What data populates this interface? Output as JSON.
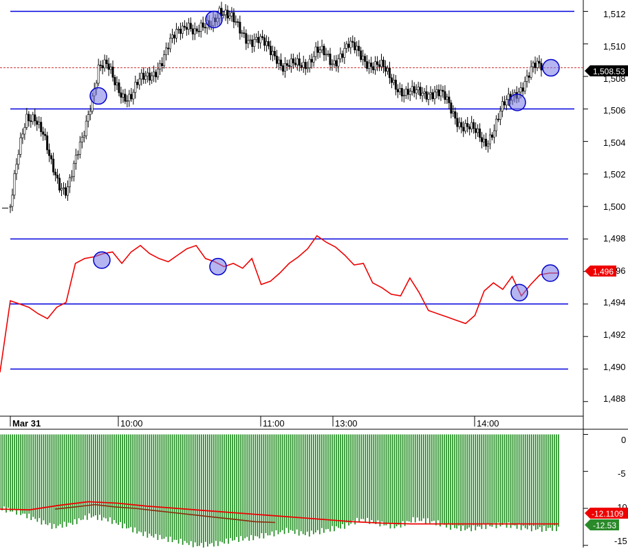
{
  "chart_data": [
    {
      "type": "candlestick",
      "panel": "price",
      "y_axis_ticks": [
        "1,512",
        "1,510",
        "1,508",
        "1,506",
        "1,504",
        "1,502",
        "1,500",
        "1,498",
        "1,496",
        "1,494",
        "1,492",
        "1,490",
        "1,488"
      ],
      "y_axis_values": [
        1512,
        1510,
        1508,
        1506,
        1504,
        1502,
        1500,
        1498,
        1496,
        1494,
        1492,
        1490,
        1488
      ],
      "ylim": [
        1487.1,
        1512.7
      ],
      "last_price": 1508.53,
      "last_price_label": "1,508.53",
      "support_resistance_levels": [
        1512,
        1506
      ],
      "x_axis_labels": [
        "Mar 31",
        "10:00",
        "11:00",
        "13:00",
        "14:00"
      ],
      "close_series": [
        1500,
        1503,
        1505.5,
        1505.8,
        1504.5,
        1502.5,
        1501.5,
        1501.2,
        1502.5,
        1504,
        1506.5,
        1508.8,
        1508.5,
        1507.5,
        1507,
        1506.8,
        1507.5,
        1508,
        1508.5,
        1509,
        1510,
        1511,
        1511.5,
        1510.5,
        1510.8,
        1511.5,
        1512.2,
        1511.5,
        1511.2,
        1510.8,
        1510.2,
        1510,
        1509.8,
        1509.5,
        1508.5,
        1508.5,
        1508.8,
        1509,
        1509.5,
        1509.2,
        1508.9,
        1509.5,
        1509.8,
        1509.5,
        1509.2,
        1508.8,
        1508.5,
        1508,
        1507.6,
        1507,
        1506.8,
        1507,
        1507.2,
        1507,
        1506.5,
        1505.8,
        1505.2,
        1504.8,
        1504.3,
        1504,
        1504.8,
        1505.8,
        1506.5,
        1507.2,
        1507.8,
        1508.4,
        1508.53
      ],
      "highlight_markers": [
        1506.8,
        1511.5,
        1506.4,
        1508.53
      ]
    },
    {
      "type": "line",
      "panel": "indicator",
      "levels": [
        1498,
        1494,
        1490
      ],
      "last_value_label": "1,496",
      "series": [
        {
          "values": [
            1489.8,
            1494.2,
            1494,
            1493.8,
            1493.4,
            1493.1,
            1493.8,
            1494.1,
            1496.5,
            1496.8,
            1496.9,
            1497.1,
            1497.2,
            1496.5,
            1497.2,
            1497.6,
            1497.1,
            1496.8,
            1496.6,
            1497,
            1497.4,
            1497.6,
            1496.8,
            1496.6,
            1496.3,
            1496.5,
            1496.2,
            1496.8,
            1495.2,
            1495.4,
            1495.9,
            1496.5,
            1496.9,
            1497.4,
            1498.2,
            1497.8,
            1497.5,
            1497,
            1496.4,
            1496.5,
            1495.3,
            1495,
            1494.6,
            1494.5,
            1495.6,
            1494.7,
            1493.6,
            1493.4,
            1493.2,
            1493,
            1492.8,
            1493.3,
            1494.8,
            1495.3,
            1494.9,
            1495.7,
            1494.5,
            1495.2,
            1495.8,
            1495.9,
            1495.9
          ]
        }
      ],
      "highlight_markers": [
        1496.7,
        1496.3,
        1494.7,
        1495.9
      ]
    },
    {
      "type": "bar",
      "panel": "volume-oscillator",
      "y_axis_ticks": [
        "0",
        "-5",
        "-10",
        "-15"
      ],
      "y_axis_values": [
        0,
        -5,
        -10,
        -15
      ],
      "ylim": [
        -15.3,
        0.7
      ],
      "label_red": "-12.1109",
      "label_green": "-12.53",
      "bar_values": [
        -10,
        -10.5,
        -11.5,
        -12.5,
        -12,
        -11,
        -11.5,
        -12.5,
        -13.5,
        -14,
        -14.5,
        -15,
        -14.8,
        -14.2,
        -14,
        -13.5,
        -13,
        -13.5,
        -13,
        -12.5,
        -11.5,
        -12,
        -12.5,
        -11.5,
        -11.8,
        -12.5,
        -12.8,
        -12.4,
        -12.2,
        -12.6,
        -12.8,
        -12.7
      ],
      "red_line_values": [
        -10.1,
        -10.2,
        -9.6,
        -9.1,
        -9.3,
        -9.7,
        -10,
        -10.3,
        -10.6,
        -10.9,
        -11.2,
        -11.5,
        -11.8,
        -12,
        -12.1,
        -12.1,
        -12.1,
        -12.1,
        -12.1,
        -12.1
      ],
      "brown_line_values": [
        -10.1,
        -9.8,
        -9.5,
        -9.8,
        -10,
        -10.3,
        -10.6,
        -10.9,
        -11.2,
        -11.5,
        -11.8,
        -11.9
      ]
    }
  ]
}
